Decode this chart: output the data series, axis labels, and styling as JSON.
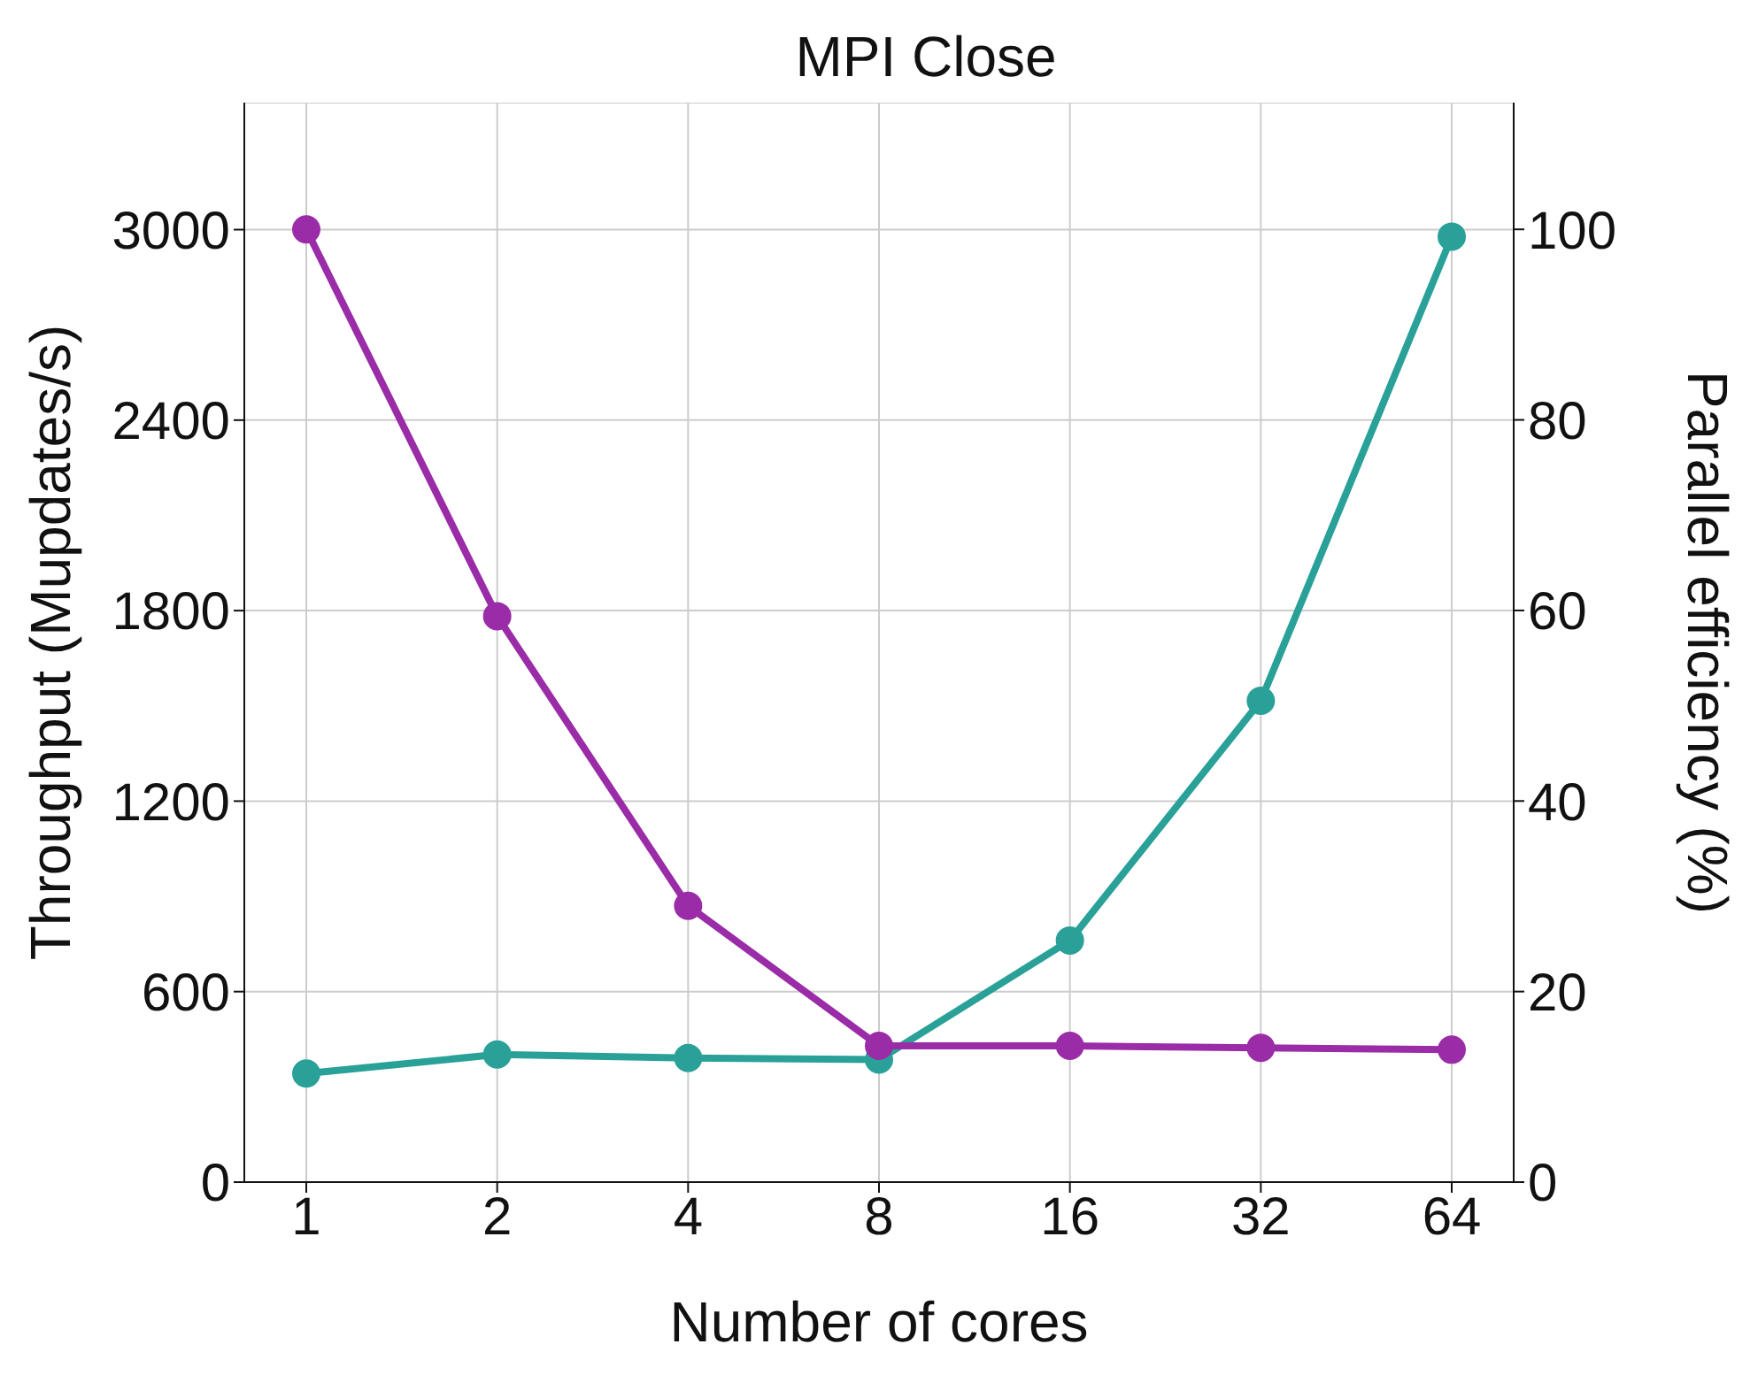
{
  "chart_data": {
    "type": "line",
    "title": "MPI Close",
    "xlabel": "Number of cores",
    "ylabel": "Throughput (Mupdates/s)",
    "y2label": "Parallel efficiency (%)",
    "categories": [
      "1",
      "2",
      "4",
      "8",
      "16",
      "32",
      "64"
    ],
    "series": [
      {
        "color": "#2aa198",
        "values": [
          342,
          402,
          391,
          386,
          761,
          1516,
          2978
        ]
      },
      {
        "color": "#9b2ca8",
        "axis": "y2",
        "values": [
          100,
          59.4,
          29.0,
          14.3,
          14.3,
          14.1,
          13.9
        ]
      }
    ],
    "ylim": [
      0,
      3400
    ],
    "yticks": [
      0,
      600,
      1200,
      1800,
      2400,
      3000
    ],
    "y2lim": [
      0,
      113.3
    ],
    "y2ticks": [
      0,
      20,
      40,
      60,
      80,
      100
    ],
    "grid": true,
    "legend": false,
    "marker": "circle",
    "line_style": "solid"
  }
}
